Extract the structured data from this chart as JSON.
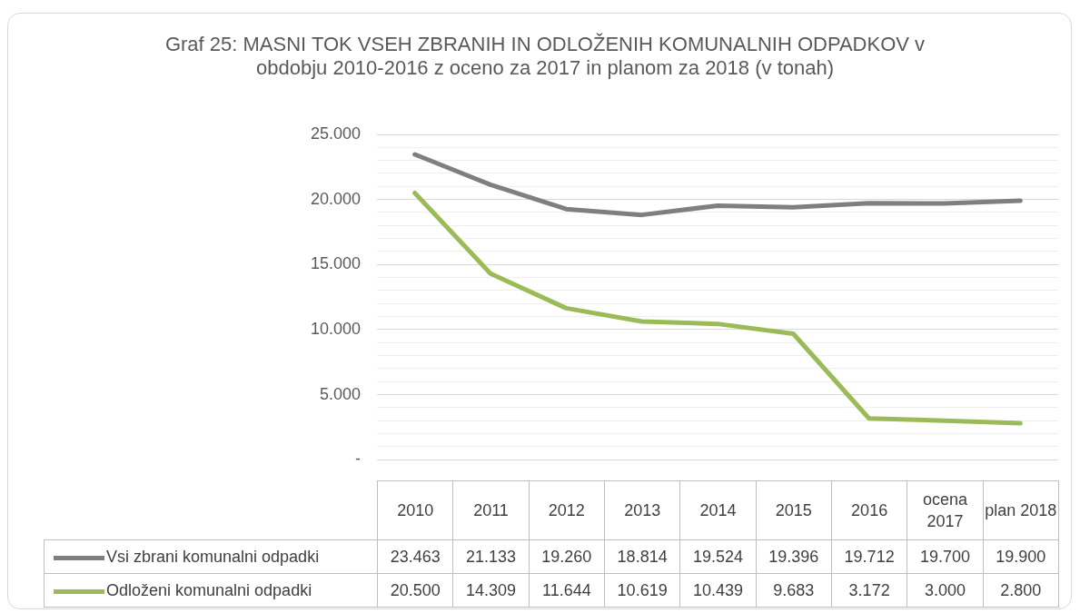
{
  "chart_data": {
    "type": "line",
    "title": "Graf 25: MASNI TOK VSEH ZBRANIH IN ODLOŽENIH KOMUNALNIH ODPADKOV v obdobju 2010-2016 z oceno za 2017 in planom za 2018 (v tonah)",
    "categories": [
      "2010",
      "2011",
      "2012",
      "2013",
      "2014",
      "2015",
      "2016",
      "ocena 2017",
      "plan 2018"
    ],
    "series": [
      {
        "name": "Vsi zbrani komunalni odpadki",
        "color": "#7f7f7f",
        "values": [
          23463,
          21133,
          19260,
          18814,
          19524,
          19396,
          19712,
          19700,
          19900
        ],
        "value_labels": [
          "23.463",
          "21.133",
          "19.260",
          "18.814",
          "19.524",
          "19.396",
          "19.712",
          "19.700",
          "19.900"
        ]
      },
      {
        "name": "Odloženi komunalni odpadki",
        "color": "#9bbb59",
        "values": [
          20500,
          14309,
          11644,
          10619,
          10439,
          9683,
          3172,
          3000,
          2800
        ],
        "value_labels": [
          "20.500",
          "14.309",
          "11.644",
          "10.619",
          "10.439",
          "9.683",
          "3.172",
          "3.000",
          "2.800"
        ]
      }
    ],
    "ylim": [
      0,
      25000
    ],
    "yticks": [
      {
        "value": 0,
        "label": "-"
      },
      {
        "value": 1000,
        "label": null
      },
      {
        "value": 2000,
        "label": null
      },
      {
        "value": 3000,
        "label": null
      },
      {
        "value": 4000,
        "label": null
      },
      {
        "value": 5000,
        "label": "5.000"
      },
      {
        "value": 6000,
        "label": null
      },
      {
        "value": 7000,
        "label": null
      },
      {
        "value": 8000,
        "label": null
      },
      {
        "value": 9000,
        "label": null
      },
      {
        "value": 10000,
        "label": "10.000"
      },
      {
        "value": 11000,
        "label": null
      },
      {
        "value": 12000,
        "label": null
      },
      {
        "value": 13000,
        "label": null
      },
      {
        "value": 14000,
        "label": null
      },
      {
        "value": 15000,
        "label": "15.000"
      },
      {
        "value": 16000,
        "label": null
      },
      {
        "value": 17000,
        "label": null
      },
      {
        "value": 18000,
        "label": null
      },
      {
        "value": 19000,
        "label": null
      },
      {
        "value": 20000,
        "label": "20.000"
      },
      {
        "value": 21000,
        "label": null
      },
      {
        "value": 22000,
        "label": null
      },
      {
        "value": 23000,
        "label": null
      },
      {
        "value": 24000,
        "label": null
      },
      {
        "value": 25000,
        "label": "25.000"
      }
    ],
    "grid": "y",
    "legend": "bottom",
    "marker": "none",
    "line_style": "solid"
  }
}
